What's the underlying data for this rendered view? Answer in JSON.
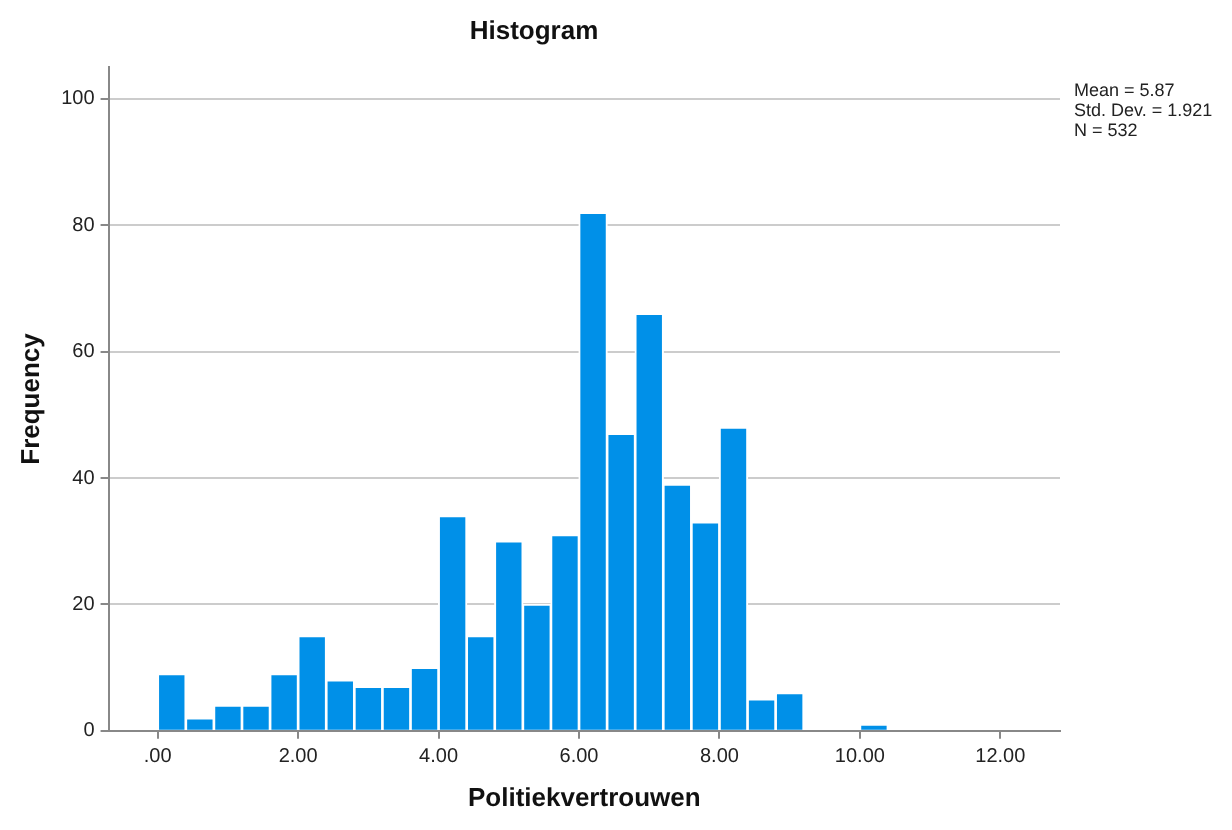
{
  "chart_data": {
    "type": "histogram",
    "title": "Histogram",
    "xlabel": "Politiekvertrouwen",
    "ylabel": "Frequency",
    "bins": [
      0,
      0.4,
      0.8,
      1.2,
      1.6,
      2.0,
      2.4,
      2.8,
      3.2,
      3.6,
      4.0,
      4.4,
      4.8,
      5.2,
      5.6,
      6.0,
      6.4,
      6.8,
      7.2,
      7.6,
      8.0,
      8.4,
      8.8,
      9.2,
      9.6,
      10.0,
      10.4
    ],
    "values": [
      9,
      2,
      4,
      4,
      9,
      15,
      8,
      7,
      7,
      10,
      34,
      15,
      30,
      20,
      31,
      82,
      47,
      66,
      39,
      33,
      48,
      5,
      6,
      0,
      0,
      1
    ],
    "color": "#0090e8",
    "xlim": [
      -0.7,
      12.85
    ],
    "xticks": [
      {
        "value": 0,
        "label": ".00"
      },
      {
        "value": 2,
        "label": "2.00"
      },
      {
        "value": 4,
        "label": "4.00"
      },
      {
        "value": 6,
        "label": "6.00"
      },
      {
        "value": 8,
        "label": "8.00"
      },
      {
        "value": 10,
        "label": "10.00"
      },
      {
        "value": 12,
        "label": "12.00"
      }
    ],
    "ylim": [
      0,
      105
    ],
    "yticks": [
      0,
      20,
      40,
      60,
      80,
      100
    ],
    "grid": "y",
    "annotations": [
      "Mean = 5.87",
      "Std. Dev. = 1.921",
      "N = 532"
    ]
  }
}
